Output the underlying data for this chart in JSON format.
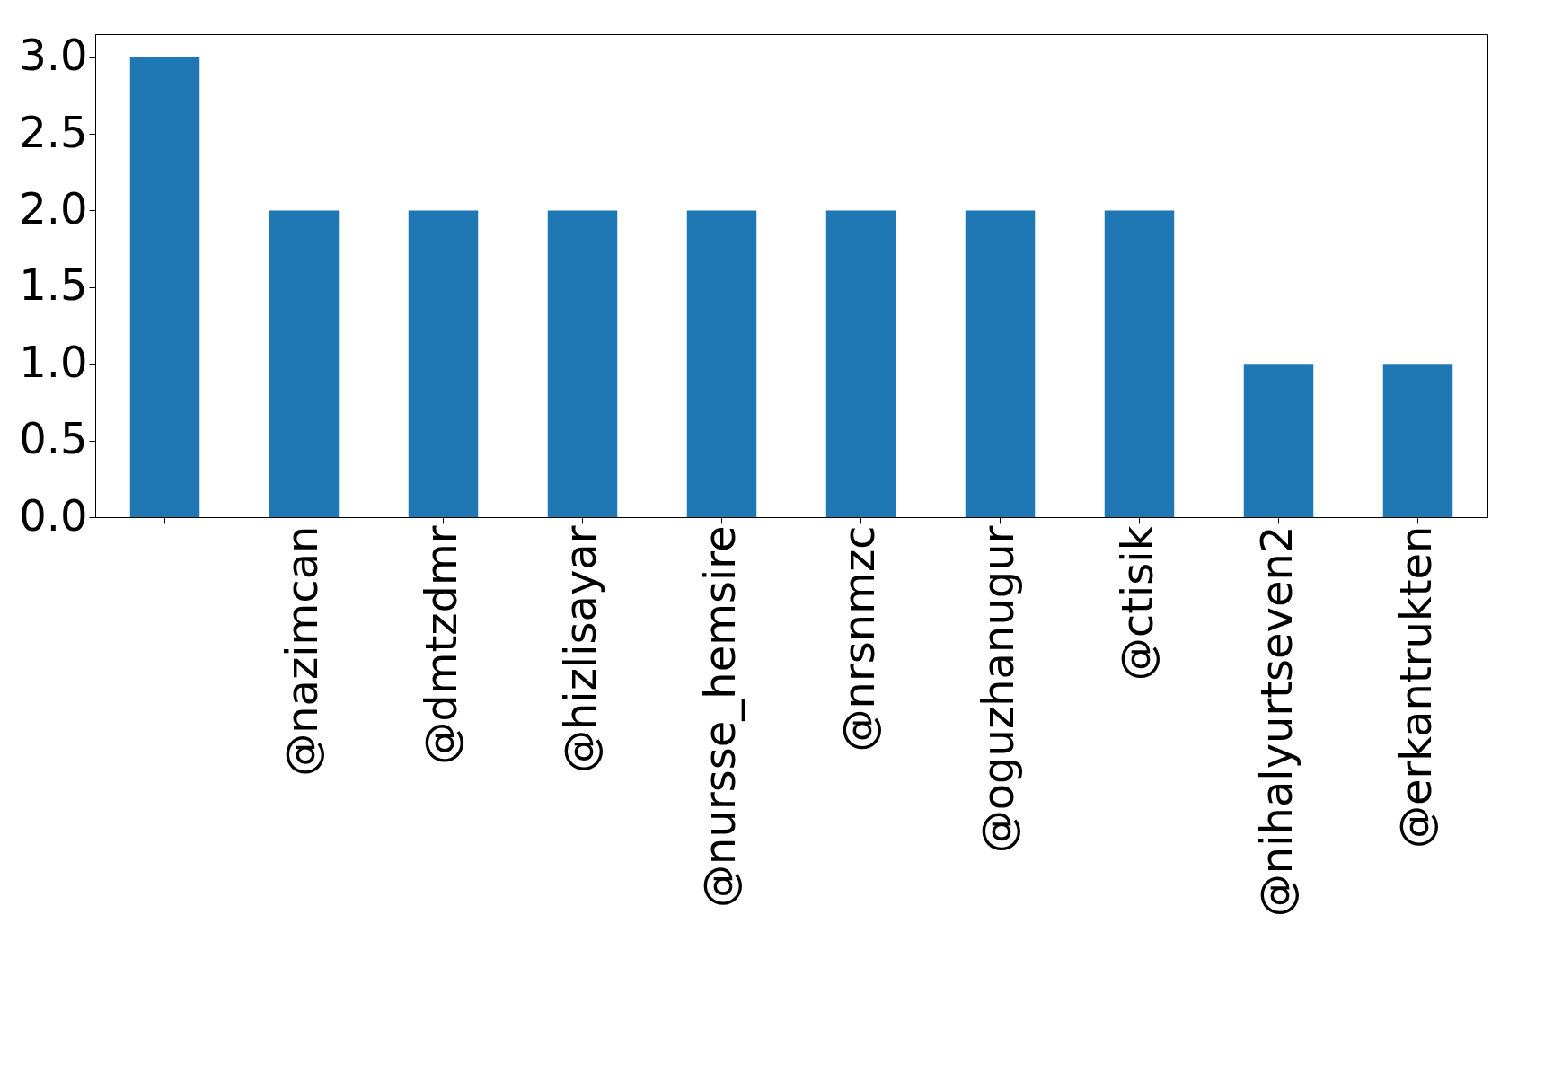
{
  "chart_data": {
    "type": "bar",
    "categories": [
      null,
      "@nazimcan",
      "@dmtzdmr",
      "@hizlisayar",
      "@nursse_hemsire",
      "@nrsnmzc",
      "@oguzhanugur",
      "@ctisik",
      "@nihalyurtseven2",
      "@erkantrukten"
    ],
    "values": [
      3,
      2,
      2,
      2,
      2,
      2,
      2,
      2,
      1,
      1
    ],
    "color": "#1f77b4",
    "ylim": [
      0,
      3.15
    ],
    "yticks": [
      {
        "value": 0,
        "label": "0.0"
      },
      0.5,
      {
        "value": 1,
        "label": "1.0"
      },
      1.5,
      {
        "value": 2,
        "label": "2.0"
      },
      2.5,
      {
        "value": 3,
        "label": "3.0"
      }
    ],
    "grid": false
  }
}
